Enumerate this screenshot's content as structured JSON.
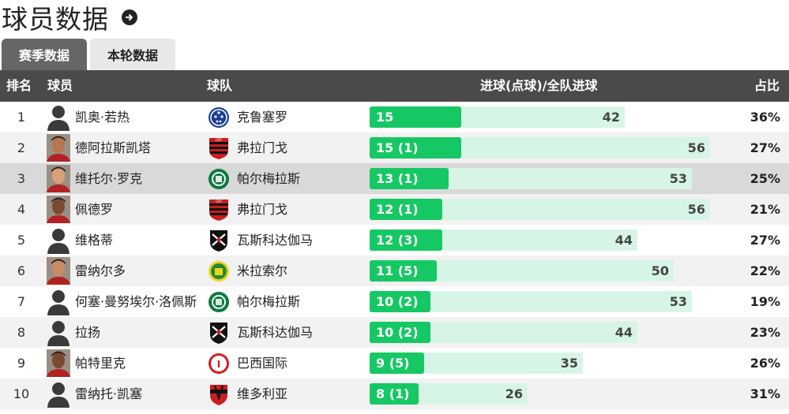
{
  "page": {
    "title": "球员数据"
  },
  "tabs": {
    "season": "赛季数据",
    "round": "本轮数据"
  },
  "columns": {
    "rank": "排名",
    "player": "球员",
    "team": "球队",
    "goals": "进球(点球)/全队进球",
    "pct": "占比"
  },
  "colors": {
    "bar_player": "#16c864",
    "bar_total": "#d7f5e6",
    "header_bg": "#4a4a4a"
  },
  "rows": [
    {
      "rank": "1",
      "player": "凯奥·若热",
      "team": "克鲁塞罗",
      "goals": 15,
      "goals_label": "15",
      "team_goals": 42,
      "pct": "36%",
      "avatar": "silhouette",
      "team_icon": "cruzeiro-logo"
    },
    {
      "rank": "2",
      "player": "德阿拉斯凯塔",
      "team": "弗拉门戈",
      "goals": 15,
      "goals_label": "15 (1)",
      "team_goals": 56,
      "pct": "27%",
      "avatar": "photo",
      "team_icon": "flamengo-logo"
    },
    {
      "rank": "3",
      "player": "维托尔·罗克",
      "team": "帕尔梅拉斯",
      "goals": 13,
      "goals_label": "13 (1)",
      "team_goals": 53,
      "pct": "25%",
      "avatar": "photo",
      "team_icon": "palmeiras-logo"
    },
    {
      "rank": "4",
      "player": "佩德罗",
      "team": "弗拉门戈",
      "goals": 12,
      "goals_label": "12 (1)",
      "team_goals": 56,
      "pct": "21%",
      "avatar": "photo",
      "team_icon": "flamengo-logo"
    },
    {
      "rank": "5",
      "player": "维格蒂",
      "team": "瓦斯科达伽马",
      "goals": 12,
      "goals_label": "12 (3)",
      "team_goals": 44,
      "pct": "27%",
      "avatar": "silhouette",
      "team_icon": "vasco-logo"
    },
    {
      "rank": "6",
      "player": "雷纳尔多",
      "team": "米拉索尔",
      "goals": 11,
      "goals_label": "11 (5)",
      "team_goals": 50,
      "pct": "22%",
      "avatar": "photo",
      "team_icon": "mirassol-logo"
    },
    {
      "rank": "7",
      "player": "何塞·曼努埃尔·洛佩斯",
      "team": "帕尔梅拉斯",
      "goals": 10,
      "goals_label": "10 (2)",
      "team_goals": 53,
      "pct": "19%",
      "avatar": "silhouette",
      "team_icon": "palmeiras-logo"
    },
    {
      "rank": "8",
      "player": "拉扬",
      "team": "瓦斯科达伽马",
      "goals": 10,
      "goals_label": "10 (2)",
      "team_goals": 44,
      "pct": "23%",
      "avatar": "silhouette",
      "team_icon": "vasco-logo"
    },
    {
      "rank": "9",
      "player": "帕特里克",
      "team": "巴西国际",
      "goals": 9,
      "goals_label": "9 (5)",
      "team_goals": 35,
      "pct": "26%",
      "avatar": "photo",
      "team_icon": "internacional-logo"
    },
    {
      "rank": "10",
      "player": "雷纳托·凯塞",
      "team": "维多利亚",
      "goals": 8,
      "goals_label": "8 (1)",
      "team_goals": 26,
      "pct": "31%",
      "avatar": "silhouette",
      "team_icon": "vitoria-logo"
    }
  ]
}
